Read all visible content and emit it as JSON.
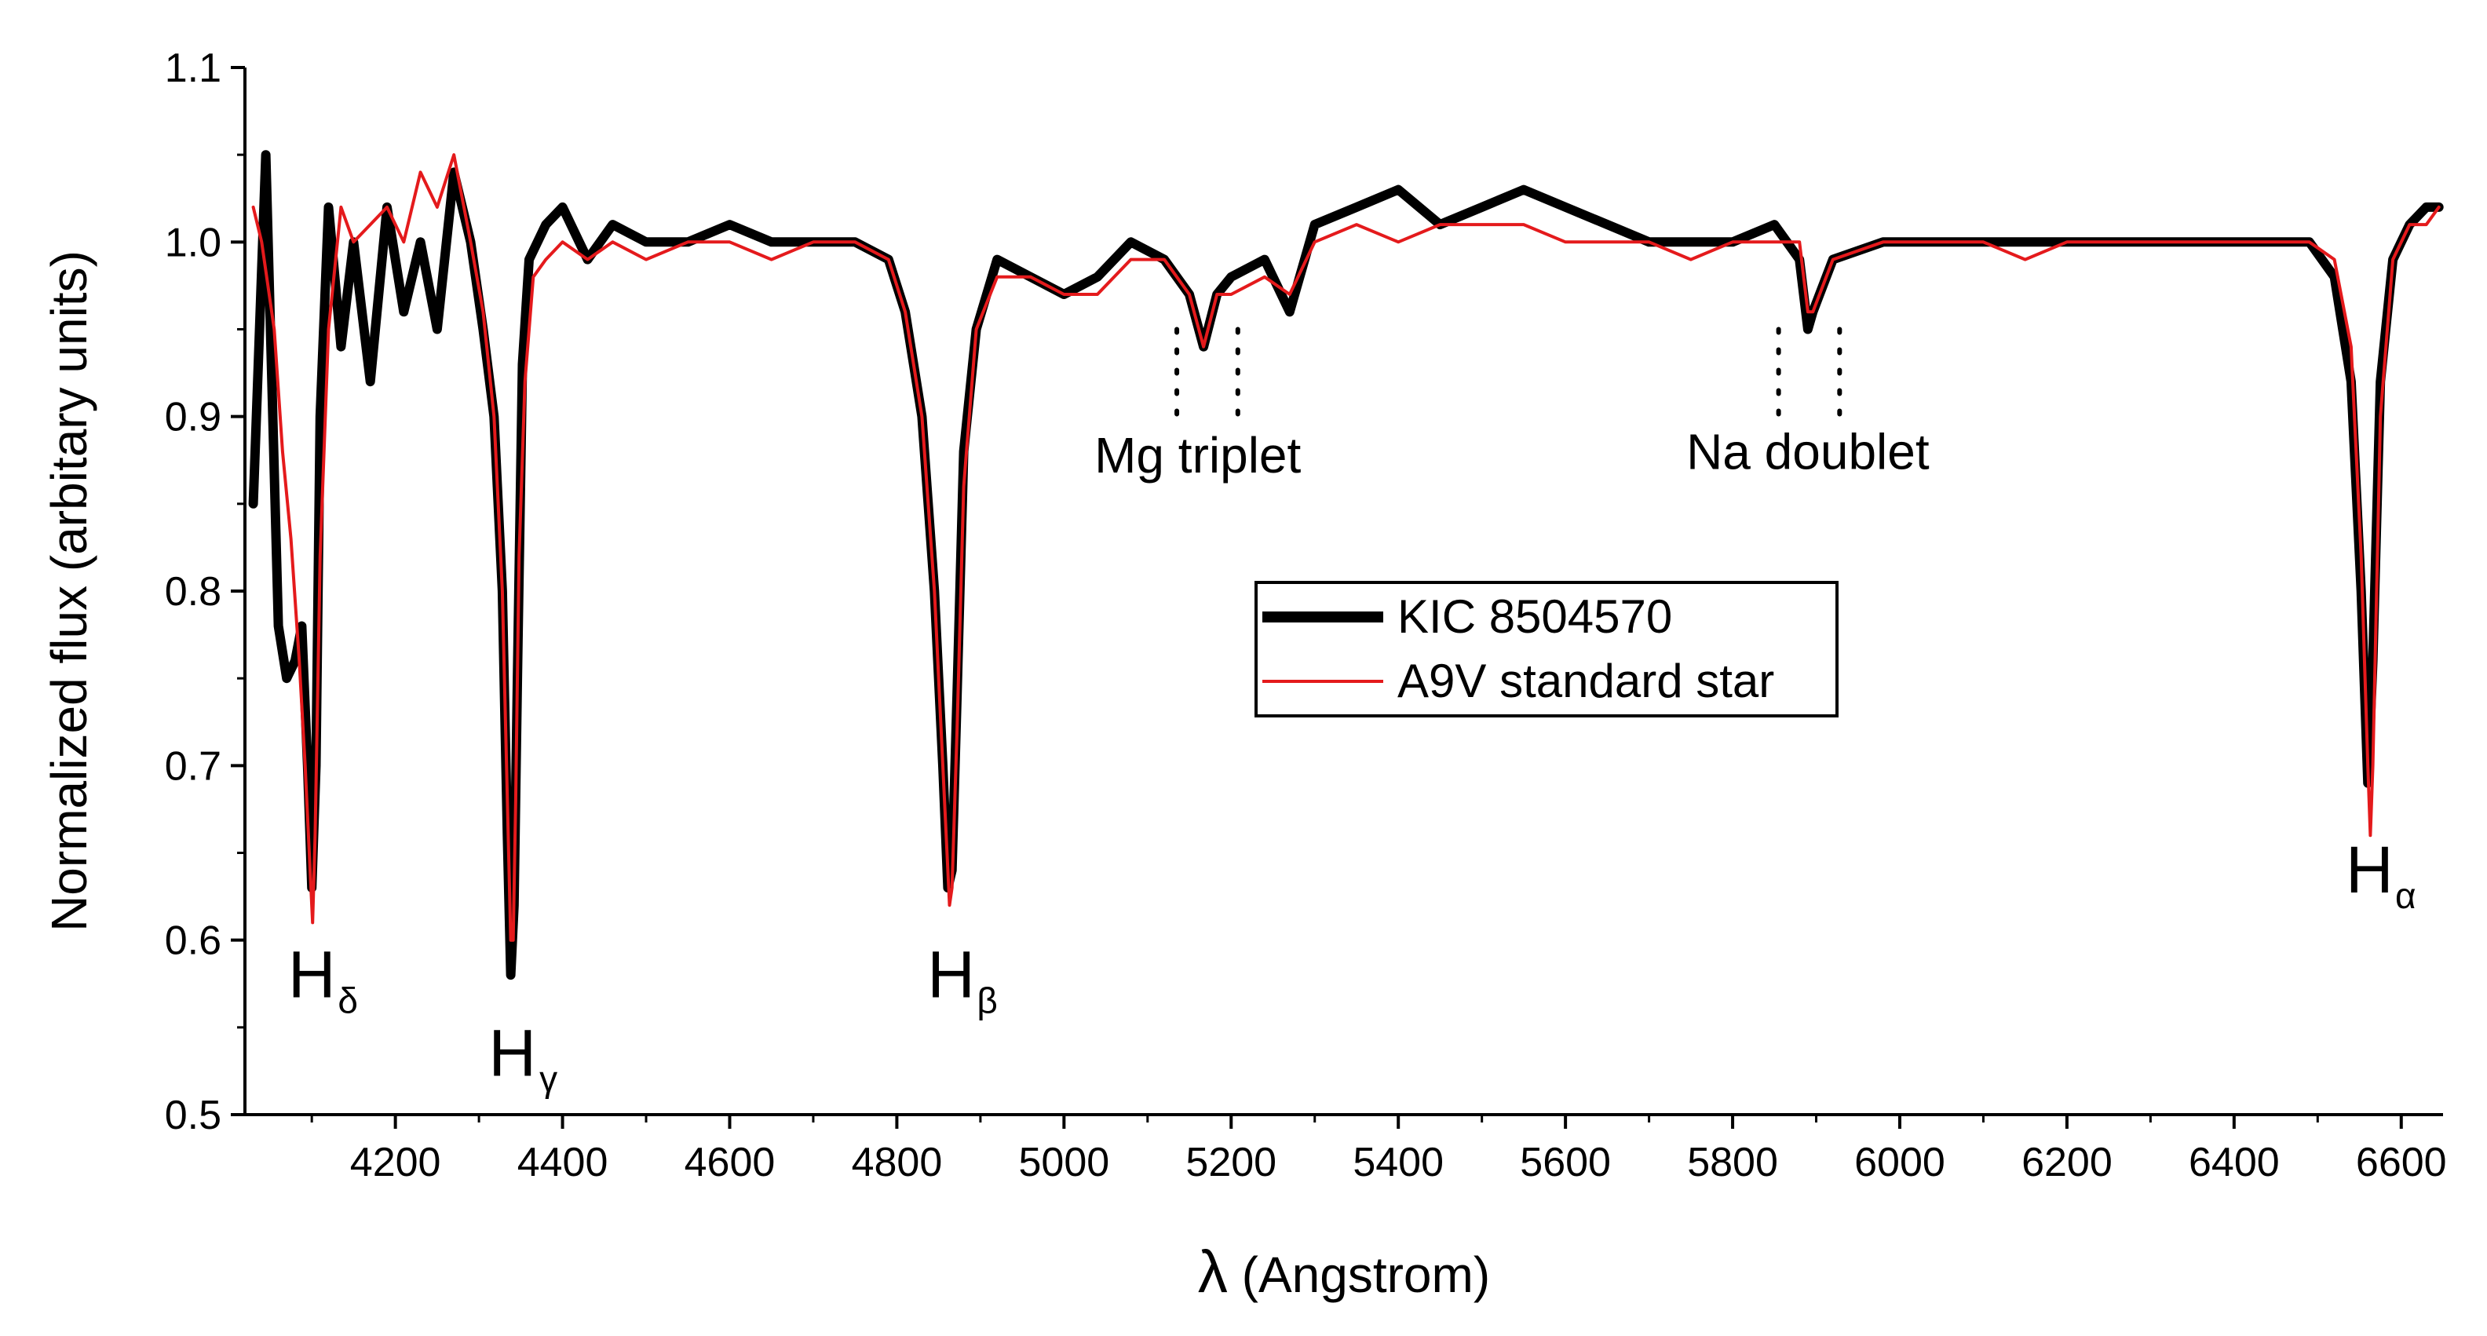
{
  "chart_data": {
    "type": "line",
    "title": "",
    "xlabel_symbol": "λ",
    "xlabel_text": " (Angstrom)",
    "ylabel": "Normalized flux (arbitary units)",
    "xlim": [
      4020,
      6650
    ],
    "ylim": [
      0.5,
      1.1
    ],
    "x_ticks": [
      4200,
      4400,
      4600,
      4800,
      5000,
      5200,
      5400,
      5600,
      5800,
      6000,
      6200,
      6400,
      6600
    ],
    "x_tick_labels": [
      "4200",
      "4400",
      "4600",
      "4800",
      "5000",
      "5200",
      "5400",
      "5600",
      "5800",
      "6000",
      "6200",
      "6400",
      "6600"
    ],
    "y_ticks": [
      0.5,
      0.6,
      0.7,
      0.8,
      0.9,
      1.0,
      1.1
    ],
    "y_tick_labels": [
      "0.5",
      "0.6",
      "0.7",
      "0.8",
      "0.9",
      "1.0",
      "1.1"
    ],
    "legend_position": "center",
    "series": [
      {
        "name": "KIC 8504570",
        "color": "#000000",
        "x": [
          4030,
          4045,
          4060,
          4070,
          4080,
          4088,
          4095,
          4100,
          4105,
          4110,
          4120,
          4135,
          4150,
          4170,
          4190,
          4210,
          4230,
          4250,
          4270,
          4290,
          4305,
          4318,
          4328,
          4334,
          4338,
          4342,
          4346,
          4352,
          4360,
          4380,
          4400,
          4430,
          4460,
          4500,
          4550,
          4600,
          4650,
          4700,
          4750,
          4790,
          4810,
          4830,
          4845,
          4855,
          4861,
          4866,
          4872,
          4880,
          4895,
          4920,
          4960,
          5000,
          5040,
          5080,
          5120,
          5150,
          5167,
          5183,
          5200,
          5240,
          5270,
          5300,
          5350,
          5400,
          5450,
          5500,
          5550,
          5600,
          5650,
          5700,
          5750,
          5800,
          5850,
          5880,
          5890,
          5896,
          5920,
          5980,
          6050,
          6100,
          6150,
          6200,
          6250,
          6300,
          6350,
          6400,
          6450,
          6490,
          6520,
          6540,
          6552,
          6560,
          6566,
          6575,
          6590,
          6610,
          6630,
          6645
        ],
        "values": [
          0.85,
          1.05,
          0.78,
          0.75,
          0.76,
          0.78,
          0.7,
          0.63,
          0.7,
          0.9,
          1.02,
          0.94,
          1.0,
          0.92,
          1.02,
          0.96,
          1.0,
          0.95,
          1.04,
          1.0,
          0.95,
          0.9,
          0.8,
          0.66,
          0.58,
          0.62,
          0.75,
          0.93,
          0.99,
          1.01,
          1.02,
          0.99,
          1.01,
          1.0,
          1.0,
          1.01,
          1.0,
          1.0,
          1.0,
          0.99,
          0.96,
          0.9,
          0.8,
          0.7,
          0.63,
          0.64,
          0.74,
          0.88,
          0.95,
          0.99,
          0.98,
          0.97,
          0.98,
          1.0,
          0.99,
          0.97,
          0.94,
          0.97,
          0.98,
          0.99,
          0.96,
          1.01,
          1.02,
          1.03,
          1.01,
          1.02,
          1.03,
          1.02,
          1.01,
          1.0,
          1.0,
          1.0,
          1.01,
          0.99,
          0.95,
          0.96,
          0.99,
          1.0,
          1.0,
          1.0,
          1.0,
          1.0,
          1.0,
          1.0,
          1.0,
          1.0,
          1.0,
          1.0,
          0.98,
          0.92,
          0.8,
          0.69,
          0.76,
          0.92,
          0.99,
          1.01,
          1.02,
          1.02
        ]
      },
      {
        "name": "A9V standard star",
        "color": "#e41a1c",
        "x": [
          4030,
          4040,
          4055,
          4065,
          4075,
          4085,
          4092,
          4098,
          4101,
          4104,
          4110,
          4120,
          4135,
          4150,
          4170,
          4190,
          4210,
          4230,
          4250,
          4270,
          4290,
          4305,
          4318,
          4328,
          4334,
          4338,
          4341,
          4344,
          4348,
          4355,
          4365,
          4380,
          4400,
          4430,
          4460,
          4500,
          4550,
          4600,
          4650,
          4700,
          4750,
          4790,
          4810,
          4830,
          4845,
          4855,
          4861,
          4863,
          4866,
          4872,
          4880,
          4895,
          4920,
          4960,
          5000,
          5040,
          5080,
          5120,
          5150,
          5167,
          5183,
          5200,
          5240,
          5270,
          5300,
          5350,
          5400,
          5450,
          5500,
          5550,
          5600,
          5650,
          5700,
          5750,
          5800,
          5850,
          5880,
          5890,
          5896,
          5920,
          5980,
          6050,
          6100,
          6150,
          6200,
          6250,
          6300,
          6350,
          6400,
          6450,
          6490,
          6520,
          6540,
          6552,
          6560,
          6563,
          6566,
          6575,
          6590,
          6610,
          6630,
          6645
        ],
        "values": [
          1.02,
          1.0,
          0.95,
          0.88,
          0.83,
          0.76,
          0.7,
          0.64,
          0.61,
          0.66,
          0.82,
          0.95,
          1.02,
          1.0,
          1.01,
          1.02,
          1.0,
          1.04,
          1.02,
          1.05,
          1.0,
          0.96,
          0.9,
          0.8,
          0.68,
          0.6,
          0.6,
          0.68,
          0.82,
          0.92,
          0.98,
          0.99,
          1.0,
          0.99,
          1.0,
          0.99,
          1.0,
          1.0,
          0.99,
          1.0,
          1.0,
          0.99,
          0.96,
          0.9,
          0.8,
          0.7,
          0.64,
          0.62,
          0.63,
          0.72,
          0.86,
          0.95,
          0.98,
          0.98,
          0.97,
          0.97,
          0.99,
          0.99,
          0.97,
          0.94,
          0.97,
          0.97,
          0.98,
          0.97,
          1.0,
          1.01,
          1.0,
          1.01,
          1.01,
          1.01,
          1.0,
          1.0,
          1.0,
          0.99,
          1.0,
          1.0,
          1.0,
          0.96,
          0.96,
          0.99,
          1.0,
          1.0,
          1.0,
          0.99,
          1.0,
          1.0,
          1.0,
          1.0,
          1.0,
          1.0,
          1.0,
          0.99,
          0.94,
          0.82,
          0.7,
          0.66,
          0.7,
          0.9,
          0.99,
          1.01,
          1.01,
          1.02
        ]
      }
    ],
    "line_labels": [
      {
        "name": "H",
        "sub": "δ",
        "x": 4100,
        "y": 0.605
      },
      {
        "name": "H",
        "sub": "γ",
        "x": 4340,
        "y": 0.56
      },
      {
        "name": "H",
        "sub": "β",
        "x": 4865,
        "y": 0.605
      },
      {
        "name": "H",
        "sub": "α",
        "x": 6562,
        "y": 0.665
      }
    ],
    "region_labels": [
      {
        "text": "Mg triplet",
        "x": 5160,
        "y": 0.868
      },
      {
        "text": "Na doublet",
        "x": 5890,
        "y": 0.87
      }
    ],
    "dotted_markers": [
      5135,
      5208,
      5855,
      5928
    ],
    "dotted_marker_range": [
      0.895,
      0.95
    ]
  }
}
